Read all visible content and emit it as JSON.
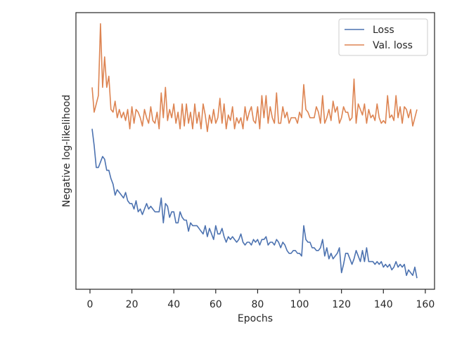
{
  "chart_data": {
    "type": "line",
    "xlabel": "Epochs",
    "ylabel": "Negative log-likelihood",
    "xlim": [
      -6.7,
      164.4
    ],
    "xticks": [
      0,
      20,
      40,
      60,
      80,
      100,
      120,
      140,
      160
    ],
    "ylim": [
      0,
      100
    ],
    "legend": "upper right",
    "grid": false,
    "x": [
      1,
      2,
      3,
      4,
      5,
      6,
      7,
      8,
      9,
      10,
      11,
      12,
      13,
      14,
      15,
      16,
      17,
      18,
      19,
      20,
      21,
      22,
      23,
      24,
      25,
      26,
      27,
      28,
      29,
      30,
      31,
      32,
      33,
      34,
      35,
      36,
      37,
      38,
      39,
      40,
      41,
      42,
      43,
      44,
      45,
      46,
      47,
      48,
      49,
      50,
      51,
      52,
      53,
      54,
      55,
      56,
      57,
      58,
      59,
      60,
      61,
      62,
      63,
      64,
      65,
      66,
      67,
      68,
      69,
      70,
      71,
      72,
      73,
      74,
      75,
      76,
      77,
      78,
      79,
      80,
      81,
      82,
      83,
      84,
      85,
      86,
      87,
      88,
      89,
      90,
      91,
      92,
      93,
      94,
      95,
      96,
      97,
      98,
      99,
      100,
      101,
      102,
      103,
      104,
      105,
      106,
      107,
      108,
      109,
      110,
      111,
      112,
      113,
      114,
      115,
      116,
      117,
      118,
      119,
      120,
      121,
      122,
      123,
      124,
      125,
      126,
      127,
      128,
      129,
      130,
      131,
      132,
      133,
      134,
      135,
      136,
      137,
      138,
      139,
      140,
      141,
      142,
      143,
      144,
      145,
      146,
      147,
      148,
      149,
      150,
      151,
      152,
      153,
      154,
      155,
      156
    ],
    "series": [
      {
        "name": "Loss",
        "color": "#4c72b0",
        "values": [
          58,
          52,
          44,
          44,
          46,
          48,
          47,
          43,
          43,
          40,
          38,
          34,
          36,
          35,
          34,
          33,
          35,
          32,
          31,
          31,
          29,
          32,
          28,
          29,
          27,
          29,
          31,
          29,
          30,
          29,
          28,
          28,
          28,
          33,
          24,
          31,
          30,
          26,
          28,
          28,
          24,
          24,
          28,
          26,
          25,
          25,
          21,
          24,
          23,
          23,
          23,
          22,
          21,
          20,
          23,
          19,
          22,
          20,
          18,
          23,
          20,
          20,
          22,
          19,
          17,
          19,
          18,
          19,
          18,
          17,
          18,
          20,
          17,
          16,
          17,
          17,
          16,
          18,
          17,
          18,
          16,
          18,
          18,
          19,
          16,
          17,
          17,
          16,
          18,
          17,
          15,
          17,
          16,
          14,
          13,
          13,
          14,
          14,
          13,
          13,
          12,
          23,
          18,
          17,
          17,
          15,
          15,
          14,
          14,
          15,
          18,
          12,
          15,
          11,
          13,
          11,
          12,
          13,
          15,
          6,
          9,
          13,
          13,
          11,
          9,
          11,
          14,
          12,
          10,
          14,
          10,
          15,
          10,
          10,
          10,
          9,
          10,
          9,
          10,
          8,
          9,
          8,
          9,
          7,
          8,
          10,
          8,
          9,
          8,
          9,
          5,
          7,
          6,
          5,
          8,
          4
        ]
      },
      {
        "name": "Val. loss",
        "color": "#dd8452",
        "values": [
          73,
          64,
          67,
          70,
          96,
          73,
          84,
          73,
          77,
          65,
          64,
          68,
          62,
          65,
          62,
          64,
          61,
          65,
          58,
          66,
          60,
          65,
          64,
          62,
          59,
          65,
          62,
          60,
          66,
          61,
          60,
          64,
          58,
          71,
          62,
          73,
          61,
          65,
          62,
          67,
          60,
          64,
          58,
          67,
          59,
          67,
          60,
          64,
          58,
          67,
          60,
          64,
          58,
          67,
          63,
          57,
          63,
          60,
          65,
          60,
          62,
          69,
          60,
          67,
          58,
          63,
          61,
          66,
          58,
          62,
          60,
          62,
          58,
          66,
          61,
          64,
          66,
          61,
          60,
          66,
          58,
          70,
          62,
          70,
          60,
          66,
          62,
          60,
          71,
          60,
          60,
          66,
          62,
          64,
          60,
          62,
          62,
          62,
          60,
          64,
          62,
          74,
          65,
          64,
          62,
          62,
          62,
          66,
          64,
          60,
          70,
          60,
          62,
          65,
          61,
          68,
          64,
          66,
          60,
          62,
          66,
          64,
          64,
          61,
          62,
          76,
          60,
          67,
          65,
          63,
          67,
          60,
          65,
          62,
          63,
          61,
          67,
          62,
          60,
          61,
          60,
          70,
          62,
          63,
          61,
          70,
          62,
          66,
          60,
          66,
          65,
          62,
          65,
          59,
          62,
          65
        ]
      }
    ]
  }
}
